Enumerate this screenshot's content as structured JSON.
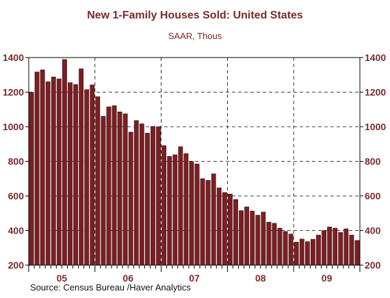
{
  "colors": {
    "title": "#7a2a2a",
    "bar": "#7b1f22",
    "bar_edge": "#2a0808",
    "axis_text": "#7a2a2a",
    "grid": "#000000"
  },
  "source_text": "Source:  Census Bureau /Haver Analytics",
  "chart_data": {
    "type": "bar",
    "title": "New 1-Family Houses Sold: United States",
    "subtitle": "SAAR, Thous",
    "ylim": [
      200,
      1400
    ],
    "yticks": [
      200,
      400,
      600,
      800,
      1000,
      1200,
      1400
    ],
    "year_labels": [
      "05",
      "06",
      "07",
      "08",
      "09"
    ],
    "grid": true,
    "y_axis_both_sides": true,
    "values": [
      1200,
      1317,
      1329,
      1260,
      1288,
      1277,
      1389,
      1255,
      1244,
      1335,
      1215,
      1242,
      1174,
      1061,
      1115,
      1122,
      1086,
      1075,
      969,
      1036,
      1017,
      963,
      1002,
      1000,
      891,
      829,
      838,
      885,
      845,
      799,
      785,
      700,
      690,
      728,
      647,
      620,
      611,
      580,
      515,
      537,
      513,
      489,
      507,
      449,
      442,
      414,
      395,
      380,
      333,
      351,
      336,
      350,
      374,
      400,
      421,
      414,
      389,
      410,
      374,
      343
    ]
  }
}
